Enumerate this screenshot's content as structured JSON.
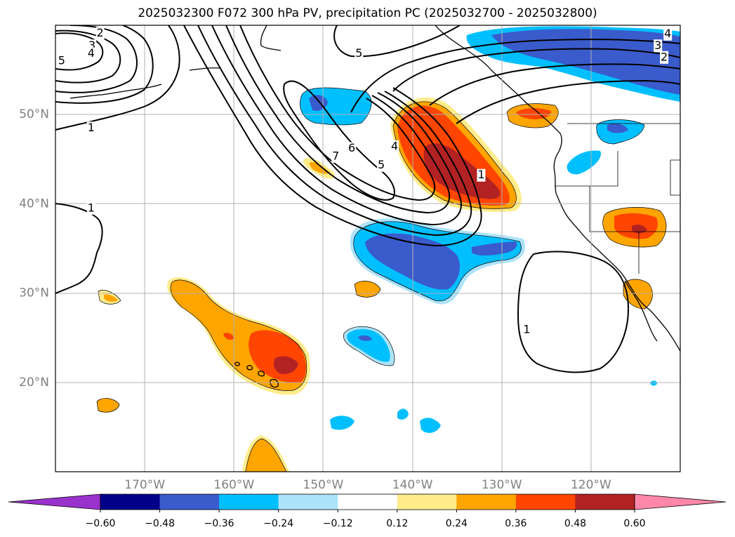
{
  "title": "2025032300 F072 300 hPa PV, precipitation PC (2025032700 - 2025032800)",
  "map": {
    "lon_range": [
      -180,
      -110
    ],
    "lat_range": [
      10,
      60
    ],
    "lon_ticks": [
      {
        "lon": -170,
        "label": "170°W"
      },
      {
        "lon": -160,
        "label": "160°W"
      },
      {
        "lon": -150,
        "label": "150°W"
      },
      {
        "lon": -140,
        "label": "140°W"
      },
      {
        "lon": -130,
        "label": "130°W"
      },
      {
        "lon": -120,
        "label": "120°W"
      }
    ],
    "lat_ticks": [
      {
        "lat": 50,
        "label": "50°N"
      },
      {
        "lat": 40,
        "label": "40°N"
      },
      {
        "lat": 30,
        "label": "30°N"
      },
      {
        "lat": 20,
        "label": "20°N"
      }
    ],
    "grid": true
  },
  "pv_contour_labels": [
    {
      "text": "2",
      "lon": -175.0,
      "lat": 59.1
    },
    {
      "text": "3",
      "lon": -175.9,
      "lat": 57.7
    },
    {
      "text": "4",
      "lon": -176.0,
      "lat": 56.8
    },
    {
      "text": "5",
      "lon": -179.3,
      "lat": 56.0
    },
    {
      "text": "1",
      "lon": -176.0,
      "lat": 48.5
    },
    {
      "text": "1",
      "lon": -176.0,
      "lat": 39.5
    },
    {
      "text": "5",
      "lon": -146.0,
      "lat": 56.8
    },
    {
      "text": "7",
      "lon": -148.6,
      "lat": 45.3
    },
    {
      "text": "6",
      "lon": -146.8,
      "lat": 46.2
    },
    {
      "text": "4",
      "lon": -142.0,
      "lat": 46.4
    },
    {
      "text": "5",
      "lon": -143.5,
      "lat": 44.3
    },
    {
      "text": "1",
      "lon": -132.3,
      "lat": 43.2
    },
    {
      "text": "4",
      "lon": -111.4,
      "lat": 59.0
    },
    {
      "text": "3",
      "lon": -112.5,
      "lat": 57.7
    },
    {
      "text": "2",
      "lon": -111.8,
      "lat": 56.4
    },
    {
      "text": "1",
      "lon": -127.2,
      "lat": 25.9
    }
  ],
  "colorbar": {
    "colors": [
      "#9932CC",
      "#00008B",
      "#3A5BCB",
      "#00BFFF",
      "#ADE3FA",
      "#FFFFFF",
      "#FFEC8B",
      "#FFA500",
      "#FF4500",
      "#B22222",
      "#FF88AA"
    ],
    "tick_labels": [
      "−0.60",
      "−0.48",
      "−0.36",
      "−0.24",
      "−0.12",
      "0.12",
      "0.24",
      "0.36",
      "0.48",
      "0.60"
    ]
  }
}
